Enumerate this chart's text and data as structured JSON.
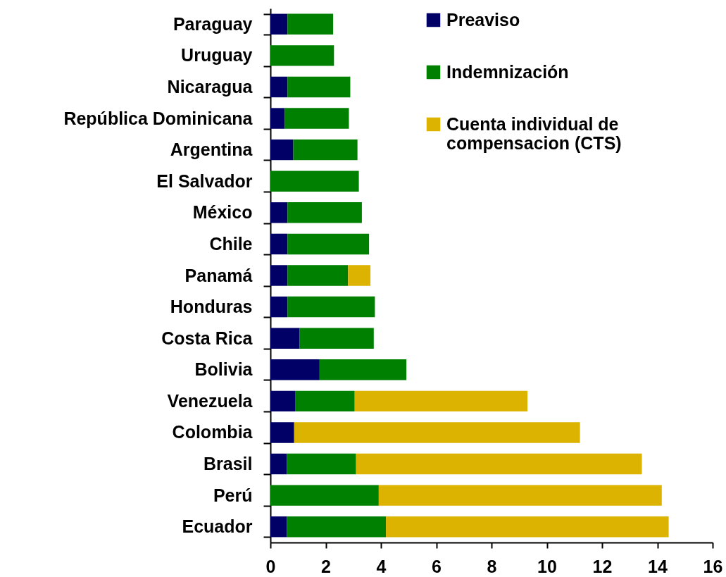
{
  "chart_data": {
    "type": "bar",
    "orientation": "horizontal",
    "stacked": true,
    "categories": [
      "Paraguay",
      "Uruguay",
      "Nicaragua",
      "República Dominicana",
      "Argentina",
      "El Salvador",
      "México",
      "Chile",
      "Panamá",
      "Honduras",
      "Costa Rica",
      "Bolivia",
      "Venezuela",
      "Colombia",
      "Brasil",
      "Perú",
      "Ecuador"
    ],
    "series": [
      {
        "name": "Preaviso",
        "color": "#000066",
        "values": [
          0.62,
          null,
          0.62,
          0.52,
          0.83,
          null,
          0.62,
          0.62,
          0.62,
          0.62,
          1.06,
          1.78,
          0.91,
          0.86,
          0.6,
          null,
          0.6
        ]
      },
      {
        "name": "Indemnización",
        "color": "#008000",
        "values": [
          1.65,
          2.3,
          2.27,
          2.32,
          2.32,
          3.2,
          2.69,
          2.95,
          2.19,
          3.16,
          2.68,
          3.14,
          2.14,
          null,
          2.5,
          3.92,
          3.58
        ]
      },
      {
        "name": "Cuenta individual de compensacion (CTS)",
        "color": "#dbb300",
        "values": [
          null,
          null,
          null,
          null,
          null,
          null,
          null,
          null,
          0.81,
          null,
          null,
          null,
          6.25,
          10.34,
          10.34,
          10.24,
          10.23
        ]
      }
    ],
    "xlim": [
      0,
      16
    ],
    "xticks": [
      0,
      2,
      4,
      6,
      8,
      10,
      12,
      14,
      16
    ],
    "grid": false,
    "legend": "top right"
  }
}
